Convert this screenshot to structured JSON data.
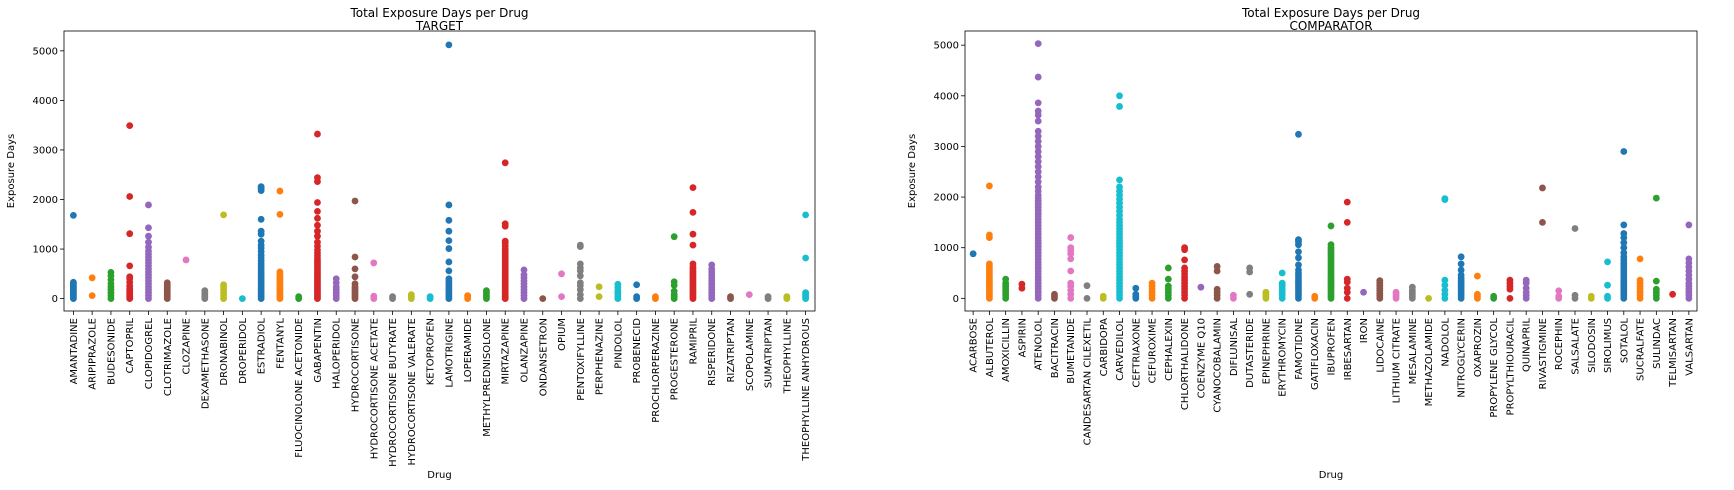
{
  "palette": [
    "#1f77b4",
    "#ff7f0e",
    "#2ca02c",
    "#d62728",
    "#9467bd",
    "#8c564b",
    "#e377c2",
    "#7f7f7f",
    "#bcbd22",
    "#17becf"
  ],
  "chart_data": [
    {
      "type": "scatter",
      "title": "Total Exposure Days per Drug",
      "subtitle": "TARGET",
      "xlabel": "Drug",
      "ylabel": "Exposure Days",
      "ylim": [
        -250,
        5400
      ],
      "yticks": [
        0,
        1000,
        2000,
        3000,
        4000,
        5000
      ],
      "grid": false,
      "categories": [
        "AMANTADINE",
        "ARIPIPRAZOLE",
        "BUDESONIDE",
        "CAPTOPRIL",
        "CLOPIDOGREL",
        "CLOTRIMAZOLE",
        "CLOZAPINE",
        "DEXAMETHASONE",
        "DRONABINOL",
        "DROPERIDOL",
        "ESTRADIOL",
        "FENTANYL",
        "FLUOCINOLONE ACETONIDE",
        "GABAPENTIN",
        "HALOPERIDOL",
        "HYDROCORTISONE",
        "HYDROCORTISONE ACETATE",
        "HYDROCORTISONE BUTYRATE",
        "HYDROCORTISONE VALERATE",
        "KETOPROFEN",
        "LAMOTRIGINE",
        "LOPERAMIDE",
        "METHYLPREDNISOLONE",
        "MIRTAZAPINE",
        "OLANZAPINE",
        "ONDANSETRON",
        "OPIUM",
        "PENTOXIFYLLINE",
        "PERPHENAZINE",
        "PINDOLOL",
        "PROBENECID",
        "PROCHLORPERAZINE",
        "PROGESTERONE",
        "RAMIPRIL",
        "RISPERIDONE",
        "RIZATRIPTAN",
        "SCOPOLAMINE",
        "SUMATRIPTAN",
        "THEOPHYLLINE",
        "THEOPHYLLINE ANHYDROUS"
      ],
      "points": [
        [
          0,
          [
            0,
            30,
            60,
            90,
            120,
            150,
            180,
            210,
            240,
            270,
            300,
            330,
            1680
          ]
        ],
        [
          1,
          [
            60,
            420
          ]
        ],
        [
          2,
          [
            0,
            60,
            120,
            180,
            240,
            300,
            380,
            460,
            530
          ]
        ],
        [
          3,
          [
            0,
            40,
            80,
            120,
            160,
            200,
            260,
            330,
            400,
            440,
            660,
            1310,
            2060,
            3490
          ]
        ],
        [
          4,
          [
            0,
            60,
            120,
            180,
            240,
            300,
            360,
            420,
            480,
            540,
            600,
            660,
            720,
            780,
            840,
            900,
            960,
            1040,
            1140,
            1260,
            1430,
            1890
          ]
        ],
        [
          5,
          [
            0,
            40,
            80,
            120,
            160,
            200,
            240,
            280,
            320
          ]
        ],
        [
          6,
          [
            780
          ]
        ],
        [
          7,
          [
            0,
            40,
            80,
            120,
            160
          ]
        ],
        [
          8,
          [
            0,
            60,
            120,
            180,
            240,
            280,
            1690
          ]
        ],
        [
          9,
          [
            0
          ]
        ],
        [
          10,
          [
            0,
            50,
            100,
            150,
            200,
            250,
            300,
            350,
            400,
            450,
            500,
            550,
            600,
            650,
            700,
            760,
            820,
            880,
            950,
            1020,
            1080,
            1160,
            1300,
            1360,
            1600,
            2180,
            2220,
            2260
          ]
        ],
        [
          11,
          [
            0,
            40,
            80,
            120,
            160,
            200,
            240,
            280,
            320,
            360,
            400,
            440,
            480,
            540,
            1700,
            2170
          ]
        ],
        [
          12,
          [
            0,
            40
          ]
        ],
        [
          13,
          [
            0,
            40,
            80,
            120,
            160,
            200,
            240,
            280,
            320,
            360,
            400,
            440,
            480,
            520,
            560,
            600,
            640,
            680,
            720,
            760,
            800,
            860,
            920,
            980,
            1060,
            1140,
            1260,
            1360,
            1480,
            1620,
            1760,
            1940,
            2360,
            2440,
            3320
          ]
        ],
        [
          14,
          [
            0,
            60,
            120,
            180,
            240,
            320,
            400
          ]
        ],
        [
          15,
          [
            0,
            40,
            80,
            120,
            160,
            200,
            240,
            300,
            440,
            600,
            840,
            1970
          ]
        ],
        [
          16,
          [
            0,
            50,
            720
          ]
        ],
        [
          17,
          [
            0,
            40
          ]
        ],
        [
          18,
          [
            0,
            40,
            80
          ]
        ],
        [
          19,
          [
            0,
            40
          ]
        ],
        [
          20,
          [
            0,
            50,
            100,
            150,
            200,
            250,
            300,
            350,
            400,
            560,
            740,
            1010,
            1170,
            1360,
            1580,
            1890,
            5120
          ]
        ],
        [
          21,
          [
            0,
            40,
            60
          ]
        ],
        [
          22,
          [
            0,
            40,
            80,
            120,
            160
          ]
        ],
        [
          23,
          [
            0,
            40,
            80,
            120,
            160,
            200,
            240,
            280,
            320,
            360,
            400,
            440,
            480,
            520,
            560,
            600,
            640,
            680,
            720,
            760,
            800,
            840,
            880,
            920,
            960,
            1000,
            1060,
            1120,
            1160,
            1460,
            1510,
            2740
          ]
        ],
        [
          24,
          [
            0,
            60,
            120,
            180,
            240,
            300,
            360,
            420,
            480,
            580
          ]
        ],
        [
          25,
          [
            0
          ]
        ],
        [
          26,
          [
            40,
            500
          ]
        ],
        [
          27,
          [
            0,
            80,
            180,
            260,
            320,
            460,
            560,
            620,
            700,
            1050,
            1080
          ]
        ],
        [
          28,
          [
            40,
            240
          ]
        ],
        [
          29,
          [
            0,
            50,
            100,
            150,
            220,
            290
          ]
        ],
        [
          30,
          [
            0,
            40,
            280
          ]
        ],
        [
          31,
          [
            0,
            40
          ]
        ],
        [
          32,
          [
            0,
            40,
            80,
            150,
            270,
            340,
            1250
          ]
        ],
        [
          33,
          [
            0,
            40,
            80,
            120,
            160,
            200,
            240,
            280,
            320,
            360,
            400,
            440,
            480,
            520,
            560,
            600,
            640,
            700,
            1080,
            1300,
            1740,
            2240
          ]
        ],
        [
          34,
          [
            0,
            60,
            120,
            180,
            240,
            300,
            360,
            420,
            480,
            540,
            600,
            680
          ]
        ],
        [
          35,
          [
            0,
            40
          ]
        ],
        [
          36,
          [
            80
          ]
        ],
        [
          37,
          [
            0,
            40
          ]
        ],
        [
          38,
          [
            0,
            40
          ]
        ],
        [
          39,
          [
            0,
            40,
            80,
            120,
            820,
            1690
          ]
        ]
      ]
    },
    {
      "type": "scatter",
      "title": "Total Exposure Days per Drug",
      "subtitle": "COMPARATOR",
      "xlabel": "Drug",
      "ylabel": "Exposure Days",
      "ylim": [
        -250,
        5280
      ],
      "yticks": [
        0,
        1000,
        2000,
        3000,
        4000,
        5000
      ],
      "grid": false,
      "categories": [
        "ACARBOSE",
        "ALBUTEROL",
        "AMOXICILLIN",
        "ASPIRIN",
        "ATENOLOL",
        "BACITRACIN",
        "BUMETANIDE",
        "CANDESARTAN CILEXETIL",
        "CARBIDOPA",
        "CARVEDILOL",
        "CEFTRIAXONE",
        "CEFUROXIME",
        "CEPHALEXIN",
        "CHLORTHALIDONE",
        "COENZYME Q10",
        "CYANOCOBALAMIN",
        "DIFLUNISAL",
        "DUTASTERIDE",
        "EPINEPHRINE",
        "ERYTHROMYCIN",
        "FAMOTIDINE",
        "GATIFLOXACIN",
        "IBUPROFEN",
        "IRBESARTAN",
        "IRON",
        "LIDOCAINE",
        "LITHIUM CITRATE",
        "MESALAMINE",
        "METHAZOLAMIDE",
        "NADOLOL",
        "NITROGLYCERIN",
        "OXAPROZIN",
        "PROPYLENE GLYCOL",
        "PROPYLTHIOURACIL",
        "QUINAPRIL",
        "RIVASTIGMINE",
        "ROCEPHIN",
        "SALSALATE",
        "SILODOSIN",
        "SIROLIMUS",
        "SOTALOL",
        "SUCRALFATE",
        "SULINDAC",
        "TELMISARTAN",
        "VALSARTAN"
      ],
      "points": [
        [
          0,
          [
            880
          ]
        ],
        [
          1,
          [
            0,
            40,
            80,
            120,
            160,
            200,
            240,
            280,
            320,
            360,
            400,
            440,
            480,
            520,
            560,
            600,
            640,
            680,
            1200,
            1250,
            2220
          ]
        ],
        [
          2,
          [
            0,
            50,
            100,
            150,
            200,
            250,
            300,
            380
          ]
        ],
        [
          3,
          [
            200,
            280
          ]
        ],
        [
          4,
          [
            0,
            60,
            120,
            180,
            240,
            300,
            360,
            420,
            480,
            540,
            600,
            660,
            720,
            780,
            840,
            900,
            960,
            1020,
            1080,
            1140,
            1200,
            1260,
            1320,
            1380,
            1440,
            1500,
            1560,
            1620,
            1680,
            1740,
            1800,
            1860,
            1920,
            1980,
            2040,
            2120,
            2200,
            2300,
            2400,
            2500,
            2600,
            2700,
            2800,
            2900,
            3000,
            3100,
            3200,
            3300,
            3500,
            3620,
            3700,
            3860,
            4370,
            5030
          ]
        ],
        [
          5,
          [
            0,
            40,
            80
          ]
        ],
        [
          6,
          [
            0,
            80,
            160,
            240,
            300,
            540,
            780,
            880,
            940,
            1000,
            1200
          ]
        ],
        [
          7,
          [
            0,
            250
          ]
        ],
        [
          8,
          [
            0,
            40
          ]
        ],
        [
          9,
          [
            0,
            60,
            120,
            180,
            240,
            300,
            360,
            420,
            480,
            540,
            600,
            660,
            720,
            780,
            840,
            900,
            960,
            1020,
            1080,
            1140,
            1200,
            1260,
            1320,
            1380,
            1440,
            1500,
            1560,
            1640,
            1720,
            1800,
            1880,
            1960,
            2040,
            2120,
            2200,
            2340,
            3790,
            4000
          ]
        ],
        [
          10,
          [
            0,
            40,
            80,
            200
          ]
        ],
        [
          11,
          [
            0,
            60,
            120,
            180,
            240,
            300
          ]
        ],
        [
          12,
          [
            0,
            60,
            120,
            180,
            240,
            380,
            600
          ]
        ],
        [
          13,
          [
            0,
            60,
            120,
            180,
            240,
            300,
            360,
            420,
            480,
            540,
            600,
            760,
            960,
            1000
          ]
        ],
        [
          14,
          [
            220
          ]
        ],
        [
          15,
          [
            0,
            60,
            120,
            180,
            540,
            630
          ]
        ],
        [
          16,
          [
            0,
            60
          ]
        ],
        [
          17,
          [
            80,
            520,
            600
          ]
        ],
        [
          18,
          [
            0,
            40,
            80,
            120
          ]
        ],
        [
          19,
          [
            0,
            60,
            120,
            180,
            240,
            280,
            300,
            500
          ]
        ],
        [
          20,
          [
            0,
            50,
            100,
            150,
            200,
            250,
            300,
            350,
            400,
            450,
            500,
            560,
            660,
            800,
            920,
            1060,
            1120,
            1160,
            3240
          ]
        ],
        [
          21,
          [
            0,
            40
          ]
        ],
        [
          22,
          [
            0,
            40,
            80,
            120,
            160,
            200,
            240,
            280,
            320,
            360,
            400,
            440,
            480,
            520,
            560,
            600,
            640,
            680,
            720,
            760,
            800,
            840,
            880,
            920,
            960,
            1000,
            1060,
            1430
          ]
        ],
        [
          23,
          [
            0,
            120,
            200,
            320,
            380,
            1500,
            1900
          ]
        ],
        [
          24,
          [
            120
          ]
        ],
        [
          25,
          [
            0,
            50,
            100,
            150,
            200,
            250,
            300,
            350
          ]
        ],
        [
          26,
          [
            0,
            40,
            80,
            120
          ]
        ],
        [
          27,
          [
            0,
            40,
            80,
            120,
            160,
            220
          ]
        ],
        [
          28,
          [
            0
          ]
        ],
        [
          29,
          [
            0,
            80,
            160,
            260,
            360,
            1950,
            1970
          ]
        ],
        [
          30,
          [
            0,
            50,
            100,
            150,
            200,
            250,
            300,
            350,
            400,
            460,
            560,
            680,
            820
          ]
        ],
        [
          31,
          [
            0,
            40,
            80,
            440
          ]
        ],
        [
          32,
          [
            0,
            40
          ]
        ],
        [
          33,
          [
            0,
            180,
            240,
            300,
            360
          ]
        ],
        [
          34,
          [
            0,
            60,
            120,
            200,
            300,
            360
          ]
        ],
        [
          35,
          [
            1500,
            2180
          ]
        ],
        [
          36,
          [
            0,
            40,
            150
          ]
        ],
        [
          37,
          [
            0,
            60,
            1380
          ]
        ],
        [
          38,
          [
            0,
            40
          ]
        ],
        [
          39,
          [
            0,
            40,
            260,
            720
          ]
        ],
        [
          40,
          [
            0,
            50,
            100,
            150,
            200,
            250,
            300,
            350,
            400,
            450,
            500,
            550,
            600,
            650,
            700,
            760,
            820,
            900,
            1000,
            1100,
            1200,
            1280,
            1450,
            2900
          ]
        ],
        [
          41,
          [
            0,
            60,
            120,
            180,
            240,
            300,
            360,
            780
          ]
        ],
        [
          42,
          [
            0,
            60,
            120,
            180,
            340,
            1980
          ]
        ],
        [
          43,
          [
            80
          ]
        ],
        [
          44,
          [
            0,
            60,
            120,
            180,
            240,
            300,
            380,
            460,
            540,
            620,
            700,
            780,
            1450
          ]
        ]
      ]
    }
  ]
}
